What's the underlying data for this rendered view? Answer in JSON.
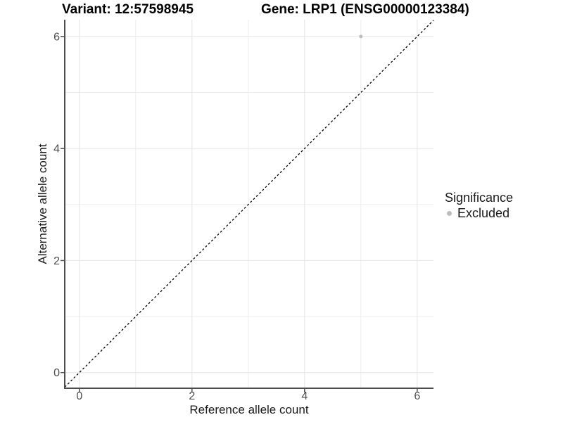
{
  "chart_data": {
    "type": "scatter",
    "titles": [
      "Variant: 12:57598945",
      "Gene: LRP1 (ENSG00000123384)"
    ],
    "xlabel": "Reference allele count",
    "ylabel": "Alternative allele count",
    "xticks": [
      0,
      2,
      4,
      6
    ],
    "yticks": [
      0,
      2,
      4,
      6
    ],
    "minor_gridlines": [
      1,
      3,
      5
    ],
    "xlim": [
      -0.26,
      6.29
    ],
    "ylim": [
      -0.28,
      6.3
    ],
    "grid": true,
    "points": [
      {
        "x": 5,
        "y": 6,
        "series": "Excluded"
      }
    ],
    "reference_line": {
      "type": "identity",
      "slope": 1,
      "intercept": 0,
      "style": "dashed"
    },
    "legend": {
      "title": "Significance",
      "position": "right",
      "items": [
        {
          "label": "Excluded",
          "color": "#bdbdbd"
        }
      ]
    },
    "colors": {
      "point": "#bdbdbd",
      "reference_line": "#000000",
      "axis": "#4d4d4d",
      "grid_major": "#e4e4e4",
      "grid_minor": "#ededed",
      "tick_text": "#4d4d4d"
    }
  }
}
